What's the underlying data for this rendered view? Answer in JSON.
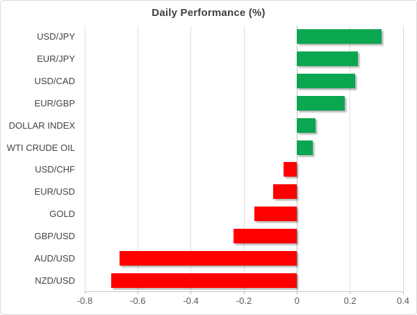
{
  "chart_data": {
    "type": "bar",
    "orientation": "horizontal",
    "title": "Daily Performance (%)",
    "categories": [
      "USD/JPY",
      "EUR/JPY",
      "USD/CAD",
      "EUR/GBP",
      "DOLLAR INDEX",
      "WTI CRUDE OIL",
      "USD/CHF",
      "EUR/USD",
      "GOLD",
      "GBP/USD",
      "AUD/USD",
      "NZD/USD"
    ],
    "values": [
      0.32,
      0.23,
      0.22,
      0.18,
      0.07,
      0.06,
      -0.05,
      -0.09,
      -0.16,
      -0.24,
      -0.67,
      -0.7
    ],
    "xlabel": "",
    "ylabel": "",
    "xlim": [
      -0.8,
      0.4
    ],
    "xticks": [
      -0.8,
      -0.6,
      -0.4,
      -0.2,
      0,
      0.2,
      0.4
    ],
    "xtick_labels": [
      "-0.8",
      "-0.6",
      "-0.4",
      "-0.2",
      "0",
      "0.2",
      "0.4"
    ],
    "grid": "vertical-only",
    "legend": "none",
    "positive_color": "#0aa650",
    "negative_color": "#fe0000",
    "title_color": "#404040",
    "label_color": "#434343",
    "tick_color": "#595959",
    "gridline_color": "#dcdcdc"
  }
}
